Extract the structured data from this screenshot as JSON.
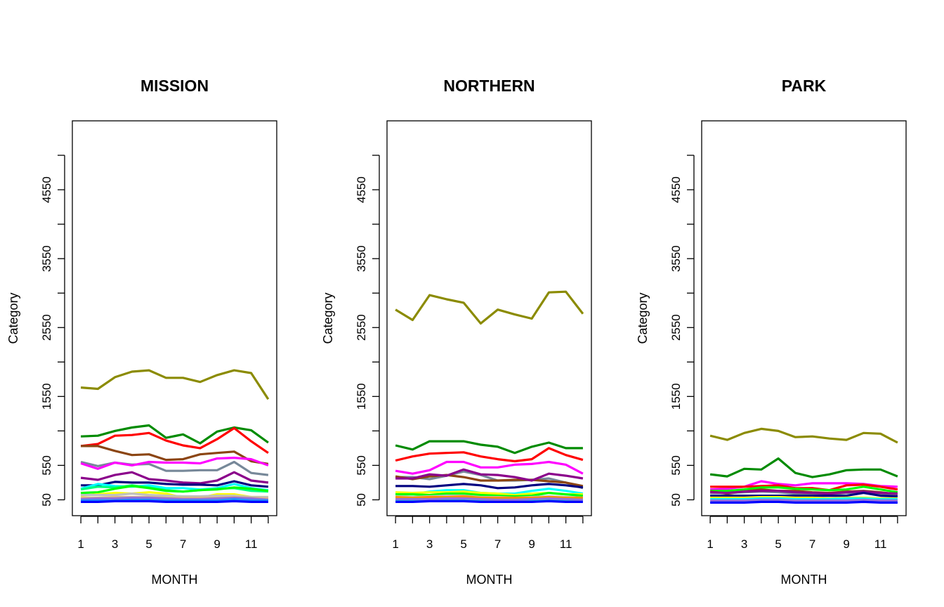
{
  "chart_data": [
    {
      "type": "line",
      "title": "MISSION",
      "xlabel": "MONTH",
      "ylabel": "Category",
      "x": [
        1,
        2,
        3,
        4,
        5,
        6,
        7,
        8,
        9,
        10,
        11,
        12
      ],
      "x_ticks": [
        1,
        3,
        5,
        7,
        9,
        11
      ],
      "y_ticks": [
        50,
        550,
        1550,
        2550,
        3550,
        4550
      ],
      "xlim": [
        0.5,
        12.5
      ],
      "ylim": [
        -180,
        5550
      ],
      "grid": false,
      "legend": "none",
      "series": [
        {
          "color": "#8B8B00",
          "values": [
            1680,
            1660,
            1830,
            1910,
            1930,
            1820,
            1820,
            1760,
            1860,
            1930,
            1890,
            1510
          ]
        },
        {
          "color": "#008B00",
          "values": [
            970,
            980,
            1050,
            1100,
            1130,
            950,
            1000,
            870,
            1040,
            1100,
            1060,
            880
          ]
        },
        {
          "color": "#FF0000",
          "values": [
            830,
            860,
            980,
            990,
            1020,
            910,
            840,
            800,
            930,
            1090,
            900,
            730
          ]
        },
        {
          "color": "#8B4513",
          "values": [
            830,
            830,
            760,
            700,
            710,
            630,
            640,
            710,
            730,
            750,
            610,
            570
          ]
        },
        {
          "color": "#778899",
          "values": [
            600,
            540,
            590,
            560,
            570,
            470,
            470,
            480,
            480,
            600,
            440,
            410
          ]
        },
        {
          "color": "#FF00FF",
          "values": [
            580,
            500,
            590,
            550,
            600,
            590,
            590,
            580,
            650,
            660,
            640,
            550
          ]
        },
        {
          "color": "#8B008B",
          "values": [
            370,
            340,
            410,
            450,
            350,
            330,
            300,
            290,
            330,
            450,
            330,
            300
          ]
        },
        {
          "color": "#000080",
          "values": [
            260,
            260,
            310,
            300,
            300,
            280,
            270,
            270,
            260,
            320,
            260,
            240
          ]
        },
        {
          "color": "#00FFFF",
          "values": [
            210,
            280,
            250,
            240,
            260,
            220,
            220,
            200,
            220,
            280,
            220,
            190
          ]
        },
        {
          "color": "#00FF7F",
          "values": [
            200,
            240,
            230,
            260,
            230,
            190,
            170,
            190,
            210,
            220,
            180,
            170
          ]
        },
        {
          "color": "#00FF00",
          "values": [
            150,
            160,
            210,
            250,
            220,
            180,
            170,
            190,
            200,
            230,
            210,
            180
          ]
        },
        {
          "color": "#FFFF00",
          "values": [
            110,
            130,
            150,
            140,
            160,
            140,
            80,
            80,
            130,
            130,
            90,
            90
          ]
        },
        {
          "color": "#C0C0C0",
          "values": [
            120,
            120,
            120,
            140,
            120,
            110,
            100,
            100,
            110,
            110,
            90,
            90
          ]
        },
        {
          "color": "#DEB887",
          "values": [
            80,
            80,
            90,
            90,
            90,
            80,
            80,
            80,
            80,
            90,
            80,
            70
          ]
        },
        {
          "color": "#9370DB",
          "values": [
            60,
            70,
            70,
            80,
            80,
            70,
            60,
            60,
            70,
            80,
            70,
            50
          ]
        },
        {
          "color": "#1E90FF",
          "values": [
            40,
            40,
            40,
            50,
            50,
            40,
            40,
            40,
            40,
            60,
            40,
            40
          ]
        },
        {
          "color": "#0000FF",
          "values": [
            20,
            20,
            30,
            30,
            30,
            20,
            20,
            20,
            20,
            30,
            20,
            20
          ]
        }
      ]
    },
    {
      "type": "line",
      "title": "NORTHERN",
      "xlabel": "MONTH",
      "ylabel": "Category",
      "x": [
        1,
        2,
        3,
        4,
        5,
        6,
        7,
        8,
        9,
        10,
        11,
        12
      ],
      "x_ticks": [
        1,
        3,
        5,
        7,
        9,
        11
      ],
      "y_ticks": [
        50,
        550,
        1550,
        2550,
        3550,
        4550
      ],
      "xlim": [
        0.5,
        12.5
      ],
      "ylim": [
        -180,
        5550
      ],
      "grid": false,
      "legend": "none",
      "series": [
        {
          "color": "#8B8B00",
          "values": [
            2810,
            2660,
            3020,
            2960,
            2910,
            2610,
            2810,
            2740,
            2680,
            3060,
            3070,
            2750
          ]
        },
        {
          "color": "#008B00",
          "values": [
            840,
            780,
            900,
            900,
            900,
            850,
            820,
            730,
            820,
            880,
            800,
            800
          ]
        },
        {
          "color": "#FF0000",
          "values": [
            620,
            680,
            720,
            730,
            740,
            680,
            640,
            610,
            640,
            800,
            700,
            630
          ]
        },
        {
          "color": "#FF00FF",
          "values": [
            470,
            430,
            480,
            600,
            600,
            520,
            520,
            560,
            570,
            600,
            560,
            430
          ]
        },
        {
          "color": "#778899",
          "values": [
            380,
            380,
            350,
            400,
            460,
            410,
            330,
            330,
            340,
            360,
            300,
            220
          ]
        },
        {
          "color": "#8B4513",
          "values": [
            390,
            350,
            390,
            410,
            380,
            330,
            330,
            340,
            340,
            320,
            300,
            250
          ]
        },
        {
          "color": "#8B008B",
          "values": [
            360,
            360,
            420,
            400,
            490,
            420,
            410,
            380,
            330,
            430,
            400,
            360
          ]
        },
        {
          "color": "#000080",
          "values": [
            250,
            250,
            240,
            260,
            280,
            260,
            220,
            230,
            260,
            280,
            260,
            230
          ]
        },
        {
          "color": "#00FFFF",
          "values": [
            150,
            130,
            170,
            190,
            190,
            150,
            140,
            140,
            180,
            210,
            180,
            140
          ]
        },
        {
          "color": "#FFFF00",
          "values": [
            160,
            150,
            160,
            160,
            170,
            150,
            140,
            120,
            140,
            150,
            130,
            130
          ]
        },
        {
          "color": "#00FF00",
          "values": [
            130,
            130,
            120,
            140,
            140,
            120,
            110,
            100,
            110,
            150,
            130,
            110
          ]
        },
        {
          "color": "#C0C0C0",
          "values": [
            100,
            90,
            100,
            110,
            110,
            90,
            90,
            80,
            90,
            100,
            90,
            80
          ]
        },
        {
          "color": "#FF8C00",
          "values": [
            90,
            80,
            90,
            90,
            100,
            80,
            80,
            80,
            80,
            90,
            80,
            80
          ]
        },
        {
          "color": "#00CED1",
          "values": [
            40,
            40,
            50,
            50,
            60,
            40,
            30,
            30,
            40,
            50,
            40,
            40
          ]
        },
        {
          "color": "#9370DB",
          "values": [
            60,
            60,
            60,
            70,
            70,
            60,
            50,
            50,
            60,
            70,
            60,
            50
          ]
        },
        {
          "color": "#0000FF",
          "values": [
            20,
            20,
            30,
            30,
            30,
            20,
            20,
            20,
            20,
            30,
            20,
            20
          ]
        }
      ]
    },
    {
      "type": "line",
      "title": "PARK",
      "xlabel": "MONTH",
      "ylabel": "Category",
      "x": [
        1,
        2,
        3,
        4,
        5,
        6,
        7,
        8,
        9,
        10,
        11,
        12
      ],
      "x_ticks": [
        1,
        3,
        5,
        7,
        9,
        11
      ],
      "y_ticks": [
        50,
        550,
        1550,
        2550,
        3550,
        4550
      ],
      "xlim": [
        0.5,
        12.5
      ],
      "ylim": [
        -180,
        5550
      ],
      "grid": false,
      "legend": "none",
      "series": [
        {
          "color": "#8B8B00",
          "values": [
            980,
            920,
            1020,
            1080,
            1050,
            960,
            970,
            940,
            920,
            1020,
            1010,
            880
          ]
        },
        {
          "color": "#008B00",
          "values": [
            420,
            390,
            500,
            490,
            650,
            440,
            380,
            420,
            480,
            490,
            490,
            390
          ]
        },
        {
          "color": "#FF00FF",
          "values": [
            200,
            210,
            240,
            320,
            280,
            260,
            290,
            290,
            290,
            280,
            250,
            240
          ]
        },
        {
          "color": "#FF0000",
          "values": [
            240,
            240,
            240,
            250,
            260,
            220,
            220,
            190,
            260,
            270,
            240,
            200
          ]
        },
        {
          "color": "#00FF00",
          "values": [
            180,
            180,
            200,
            230,
            230,
            210,
            200,
            190,
            200,
            240,
            200,
            160
          ]
        },
        {
          "color": "#8B4513",
          "values": [
            170,
            140,
            170,
            200,
            180,
            180,
            160,
            150,
            170,
            180,
            160,
            130
          ]
        },
        {
          "color": "#778899",
          "values": [
            150,
            150,
            160,
            170,
            160,
            140,
            130,
            130,
            150,
            160,
            140,
            120
          ]
        },
        {
          "color": "#8B008B",
          "values": [
            160,
            150,
            170,
            180,
            180,
            160,
            150,
            140,
            160,
            170,
            150,
            140
          ]
        },
        {
          "color": "#000080",
          "values": [
            110,
            110,
            110,
            110,
            110,
            110,
            110,
            110,
            110,
            150,
            110,
            100
          ]
        },
        {
          "color": "#FFFF00",
          "values": [
            80,
            80,
            80,
            90,
            90,
            80,
            80,
            70,
            80,
            80,
            70,
            70
          ]
        },
        {
          "color": "#00FFFF",
          "values": [
            60,
            60,
            60,
            70,
            70,
            60,
            60,
            60,
            70,
            70,
            60,
            60
          ]
        },
        {
          "color": "#9370DB",
          "values": [
            40,
            40,
            40,
            50,
            50,
            40,
            40,
            40,
            40,
            50,
            40,
            40
          ]
        },
        {
          "color": "#0000FF",
          "values": [
            10,
            10,
            10,
            20,
            20,
            10,
            10,
            10,
            10,
            20,
            10,
            10
          ]
        }
      ]
    }
  ]
}
